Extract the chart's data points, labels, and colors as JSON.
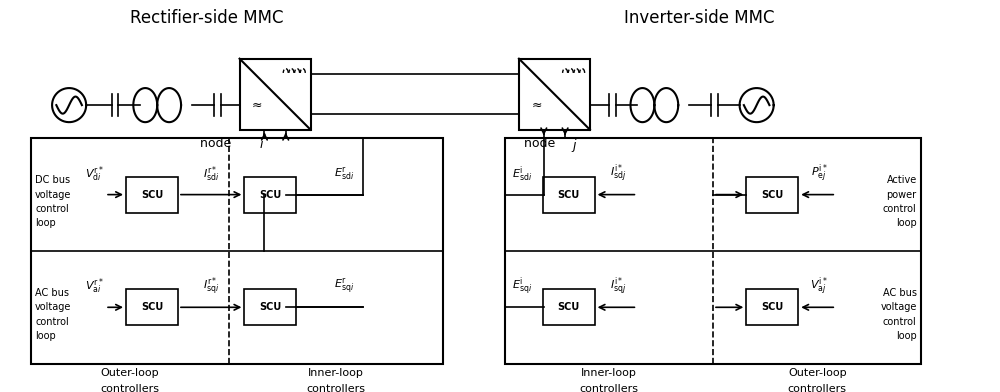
{
  "title_rect": "Rectifier-side MMC",
  "title_inv": "Inverter-side MMC",
  "bg_color": "#ffffff",
  "line_color": "#000000",
  "box_color": "#ffffff",
  "text_color": "#000000",
  "figsize": [
    10.0,
    3.92
  ],
  "dpi": 100,
  "rect_outer_label_dc": "DC bus\nvoltage\ncontrol\nloop",
  "rect_outer_label_ac": "AC bus\nvoltage\ncontrol\nloop",
  "rect_inner_label": "Inner-loop\ncontrollers",
  "rect_outer_label_bot": "Outer-loop\ncontrollers",
  "inv_inner_label": "Inner-loop\ncontrollers",
  "inv_outer_label": "Outer-loop\ncontrollers",
  "inv_active_label": "Active\npower\ncontrol\nloop",
  "inv_ac_label": "AC bus\nvoltage\ncontrol\nloop",
  "node_i_label": "node ",
  "node_j_label": "node ",
  "scu_label": "SCU"
}
